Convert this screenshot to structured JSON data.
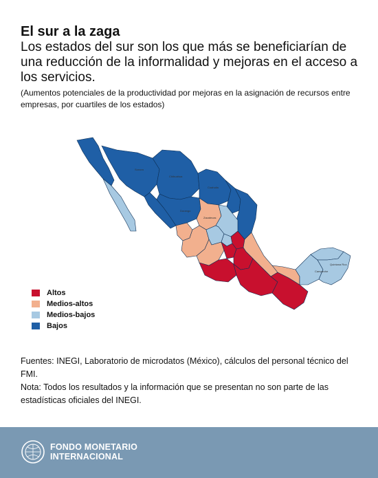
{
  "header": {
    "title": "El sur a la zaga",
    "subtitle": "Los estados del sur son los que más se beneficiarían de una reducción de la informalidad y mejoras en el acceso a los servicios.",
    "note": "(Aumentos potenciales de la productividad por mejoras en la asignación de recursos entre empresas, por cuartiles de los estados)"
  },
  "legend": {
    "items": [
      {
        "label": "Altos",
        "color": "#c8102e"
      },
      {
        "label": "Medios-altos",
        "color": "#f2b08e"
      },
      {
        "label": "Medios-bajos",
        "color": "#a7c9e2"
      },
      {
        "label": "Bajos",
        "color": "#1f5fa6"
      }
    ]
  },
  "footer": {
    "sources": "Fuentes: INEGI, Laboratorio de microdatos (México), cálculos del personal técnico del FMI.",
    "note": "Nota: Todos los resultados y la información que se presentan no son parte de las estadísticas oficiales del INEGI.",
    "org_line1": "FONDO MONETARIO",
    "org_line2": "INTERNACIONAL"
  },
  "colors": {
    "altos": "#c8102e",
    "medios_altos": "#f2b08e",
    "medios_bajos": "#a7c9e2",
    "bajos": "#1f5fa6",
    "footer_bar": "#7a99b3"
  }
}
